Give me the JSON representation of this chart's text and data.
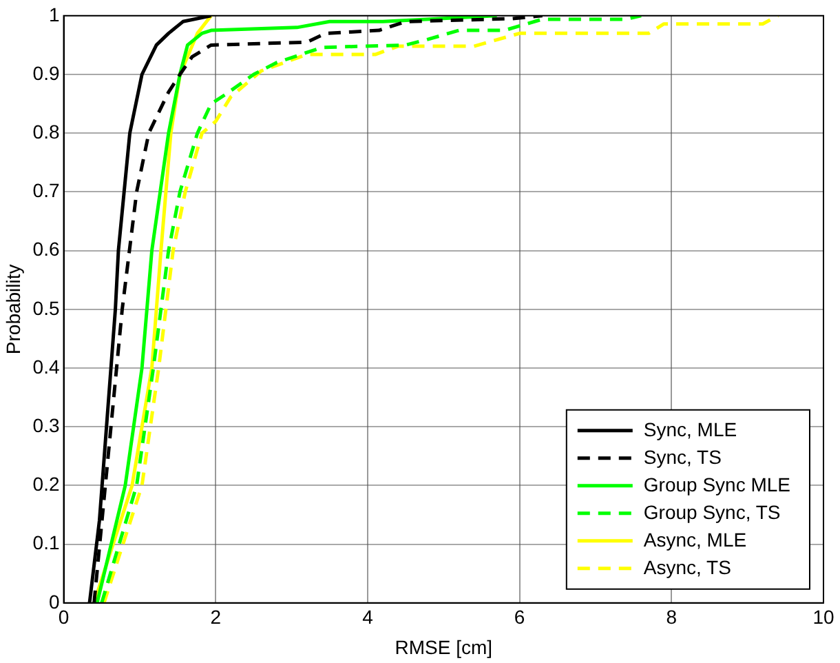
{
  "chart_data": {
    "type": "line",
    "xlabel": "RMSE [cm]",
    "ylabel": "Probability",
    "xlim": [
      0,
      10
    ],
    "ylim": [
      0,
      1
    ],
    "xticks": [
      0,
      2,
      4,
      6,
      8,
      10
    ],
    "yticks": [
      0,
      0.1,
      0.2,
      0.3,
      0.4,
      0.5,
      0.6,
      0.7,
      0.8,
      0.9,
      1
    ],
    "grid": true,
    "legend": "bottom right",
    "marker": "none",
    "series": [
      {
        "name": "Sync, MLE",
        "color": "#000000",
        "line_style": "solid",
        "x": [
          0.34,
          0.47,
          0.68,
          0.72,
          0.87,
          1.03,
          1.22,
          1.38,
          1.57,
          1.94
        ],
        "values": [
          0,
          0.14,
          0.5,
          0.6,
          0.8,
          0.9,
          0.95,
          0.97,
          0.99,
          1
        ]
      },
      {
        "name": "Sync, TS",
        "color": "#000000",
        "line_style": "dashed",
        "x": [
          0.4,
          0.77,
          0.96,
          1.12,
          1.38,
          1.53,
          1.69,
          1.94,
          3.2,
          3.45,
          4.15,
          4.5,
          5.9,
          6.3
        ],
        "values": [
          0,
          0.5,
          0.7,
          0.8,
          0.87,
          0.9,
          0.93,
          0.95,
          0.955,
          0.97,
          0.975,
          0.99,
          0.995,
          1
        ]
      },
      {
        "name": "Group Sync MLE",
        "color": "#00ff00",
        "line_style": "solid",
        "x": [
          0.44,
          0.81,
          1.03,
          1.16,
          1.38,
          1.53,
          1.63,
          1.82,
          1.94,
          3.07,
          3.5,
          4.2,
          5.7
        ],
        "values": [
          0,
          0.2,
          0.4,
          0.6,
          0.8,
          0.9,
          0.95,
          0.97,
          0.975,
          0.98,
          0.99,
          0.99,
          1
        ]
      },
      {
        "name": "Group Sync, TS",
        "color": "#00ff00",
        "line_style": "dashed",
        "x": [
          0.5,
          0.96,
          1.18,
          1.38,
          1.53,
          1.76,
          1.94,
          2.13,
          2.5,
          2.8,
          3.4,
          4.5,
          4.8,
          5.2,
          5.8,
          6.3,
          7.4,
          7.6
        ],
        "values": [
          0,
          0.2,
          0.4,
          0.6,
          0.7,
          0.8,
          0.85,
          0.866,
          0.9,
          0.92,
          0.946,
          0.95,
          0.96,
          0.975,
          0.975,
          0.994,
          0.994,
          1
        ]
      },
      {
        "name": "Async, MLE",
        "color": "#ffff00",
        "line_style": "solid",
        "x": [
          0.4,
          0.9,
          1.16,
          1.28,
          1.41,
          1.53,
          1.76,
          1.94
        ],
        "values": [
          0,
          0.2,
          0.4,
          0.6,
          0.8,
          0.9,
          0.97,
          1
        ]
      },
      {
        "name": "Async, TS",
        "color": "#ffff00",
        "line_style": "dashed",
        "x": [
          0.53,
          1.03,
          1.25,
          1.44,
          1.6,
          1.82,
          2.0,
          2.2,
          2.6,
          3.2,
          4.1,
          4.4,
          5.4,
          6.0,
          7.7,
          7.9,
          9.2,
          9.4
        ],
        "values": [
          0,
          0.2,
          0.4,
          0.6,
          0.7,
          0.8,
          0.82,
          0.862,
          0.906,
          0.934,
          0.934,
          0.948,
          0.948,
          0.97,
          0.97,
          0.986,
          0.986,
          1
        ]
      }
    ]
  }
}
